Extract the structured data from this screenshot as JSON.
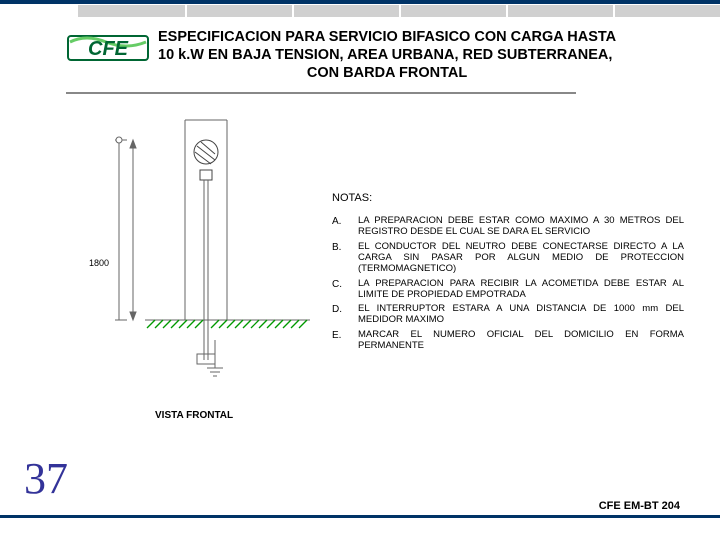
{
  "header": {
    "logo_text": "CFE",
    "logo_stroke": "#006633",
    "logo_fill": "#66cc66",
    "title_line1": "ESPECIFICACION PARA SERVICIO BIFASICO CON CARGA HASTA",
    "title_line2": "10 k.W EN BAJA TENSION, AREA URBANA, RED SUBTERRANEA,",
    "title_line3": "CON BARDA FRONTAL"
  },
  "top_accent_color": "#003366",
  "diagram": {
    "caption": "VISTA FRONTAL",
    "dim_main": "1800",
    "line_color": "#666666",
    "hatch_color": "#009900",
    "background": "#ffffff"
  },
  "notes": {
    "heading": "NOTAS:",
    "items": [
      {
        "key": "A.",
        "text": "LA PREPARACION DEBE ESTAR COMO MAXIMO A 30 METROS DEL REGISTRO DESDE EL CUAL SE DARA EL SERVICIO"
      },
      {
        "key": "B.",
        "text": "EL CONDUCTOR DEL NEUTRO DEBE CONECTARSE DIRECTO A LA CARGA SIN PASAR POR ALGUN MEDIO DE PROTECCION (TERMOMAGNETICO)"
      },
      {
        "key": "C.",
        "text": "LA PREPARACION PARA RECIBIR LA ACOMETIDA DEBE ESTAR AL LIMITE DE PROPIEDAD EMPOTRADA"
      },
      {
        "key": "D.",
        "text": "EL INTERRUPTOR ESTARA A UNA DISTANCIA DE 1000 mm DEL MEDIDOR MAXIMO"
      },
      {
        "key": "E.",
        "text": "MARCAR EL NUMERO OFICIAL DEL DOMICILIO EN FORMA PERMANENTE"
      }
    ]
  },
  "page_number": "37",
  "doc_code": "CFE EM-BT 204",
  "colors": {
    "page_num": "#333399",
    "text": "#000000",
    "rule": "#003366"
  }
}
